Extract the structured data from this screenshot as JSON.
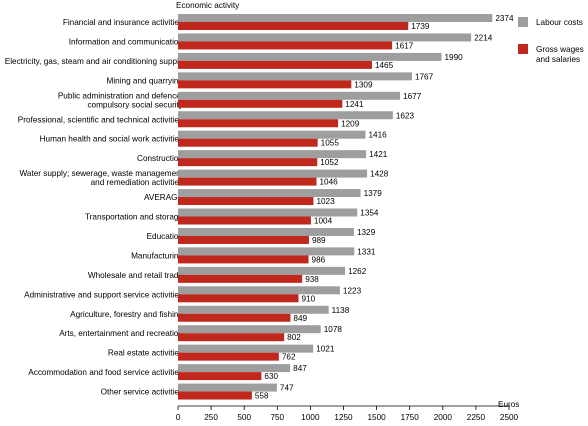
{
  "chart_data": {
    "type": "bar",
    "orientation": "horizontal",
    "ylabel": "Economic activity",
    "xlabel": "Euros",
    "xlim": [
      0,
      2500
    ],
    "xticks": [
      "0",
      "250",
      "500",
      "750",
      "1000",
      "1250",
      "1500",
      "1750",
      "2000",
      "2250",
      "2500"
    ],
    "grid": false,
    "legend_position": "right",
    "categories": [
      [
        "Financial and insurance activities"
      ],
      [
        "Information and communication"
      ],
      [
        "Electricity, gas, steam and air conditioning supply"
      ],
      [
        "Mining and quarrying"
      ],
      [
        "Public administration and defence;",
        "compulsory social security"
      ],
      [
        "Professional, scientific and technical activities"
      ],
      [
        "Human health and social work activities"
      ],
      [
        "Construction"
      ],
      [
        "Water supply; sewerage, waste management",
        "and remediation activities"
      ],
      [
        "AVERAGE"
      ],
      [
        "Transportation and storage"
      ],
      [
        "Education"
      ],
      [
        "Manufacturing"
      ],
      [
        "Wholesale and retail trade"
      ],
      [
        "Administrative and support service activities"
      ],
      [
        "Agriculture, forestry and fishing"
      ],
      [
        "Arts, entertainment and recreation"
      ],
      [
        "Real estate activities"
      ],
      [
        "Accommodation and food service activities"
      ],
      [
        "Other service activities"
      ]
    ],
    "series": [
      {
        "name": "Labour costs",
        "color": "#9e9e9e",
        "values": [
          2374,
          2214,
          1990,
          1767,
          1677,
          1623,
          1416,
          1421,
          1428,
          1379,
          1354,
          1329,
          1331,
          1262,
          1223,
          1138,
          1078,
          1021,
          847,
          747
        ]
      },
      {
        "name": "Gross wages and salaries",
        "color": "#c0281e",
        "values": [
          1739,
          1617,
          1465,
          1309,
          1241,
          1209,
          1055,
          1052,
          1046,
          1023,
          1004,
          989,
          986,
          938,
          910,
          849,
          802,
          762,
          630,
          558
        ]
      }
    ],
    "legend": [
      [
        "Labour costs"
      ],
      [
        "Gross wages",
        "and salaries"
      ]
    ]
  }
}
